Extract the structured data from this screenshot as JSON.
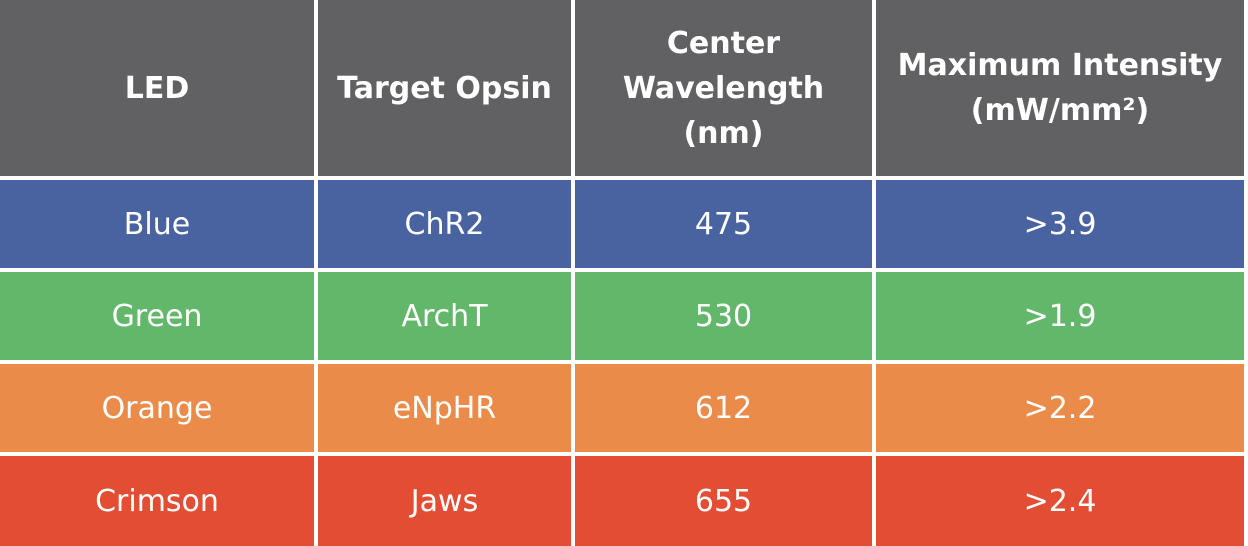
{
  "table": {
    "headers": [
      [
        "LED"
      ],
      [
        "Target Opsin"
      ],
      [
        "Center",
        "Wavelength",
        "(nm)"
      ],
      [
        "Maximum Intensity",
        "(mW/mm²)"
      ]
    ],
    "rows": [
      {
        "led": "Blue",
        "opsin": "ChR2",
        "wavelength": "475",
        "intensity": ">3.9",
        "color": "#4962a0"
      },
      {
        "led": "Green",
        "opsin": "ArchT",
        "wavelength": "530",
        "intensity": ">1.9",
        "color": "#62b76b"
      },
      {
        "led": "Orange",
        "opsin": "eNpHR",
        "wavelength": "612",
        "intensity": ">2.2",
        "color": "#ea8b49"
      },
      {
        "led": "Crimson",
        "opsin": "Jaws",
        "wavelength": "655",
        "intensity": ">2.4",
        "color": "#e34d33"
      }
    ]
  }
}
